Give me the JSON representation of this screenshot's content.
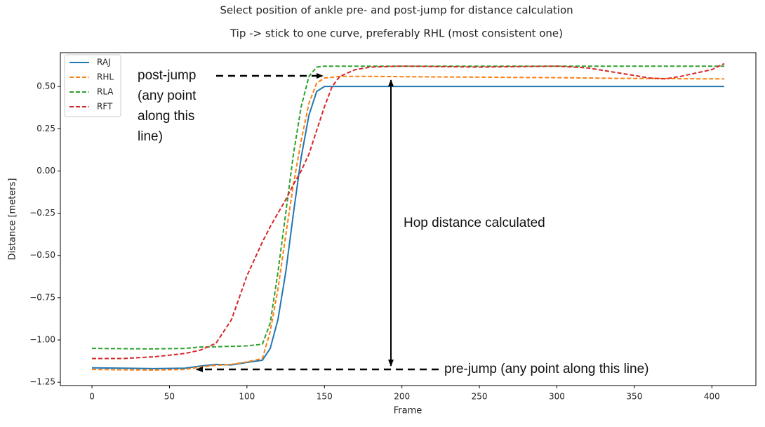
{
  "chart_data": {
    "type": "line",
    "title": "Select position of ankle pre- and post-jump for distance calculation",
    "subtitle": "Tip -> stick to one curve, preferably RHL (most consistent one)",
    "x_label": "Frame",
    "y_label": "Distance [meters]",
    "x": [
      0,
      20,
      40,
      60,
      70,
      80,
      90,
      100,
      110,
      115,
      120,
      125,
      130,
      135,
      140,
      145,
      150,
      155,
      160,
      170,
      180,
      200,
      250,
      300,
      320,
      340,
      360,
      370,
      380,
      400,
      408
    ],
    "series": [
      {
        "name": "RAJ",
        "color": "#1f77b4",
        "linestyle": "solid",
        "values": [
          -1.165,
          -1.167,
          -1.17,
          -1.167,
          -1.155,
          -1.145,
          -1.148,
          -1.133,
          -1.12,
          -1.05,
          -0.88,
          -0.6,
          -0.25,
          0.08,
          0.33,
          0.47,
          0.5,
          0.5,
          0.5,
          0.5,
          0.5,
          0.5,
          0.5,
          0.5,
          0.5,
          0.5,
          0.5,
          0.5,
          0.5,
          0.5,
          0.5
        ]
      },
      {
        "name": "RHL",
        "color": "#ff7f0e",
        "linestyle": "dashed",
        "values": [
          -1.175,
          -1.177,
          -1.178,
          -1.175,
          -1.16,
          -1.15,
          -1.145,
          -1.13,
          -1.11,
          -0.95,
          -0.7,
          -0.38,
          -0.08,
          0.18,
          0.4,
          0.52,
          0.55,
          0.555,
          0.56,
          0.56,
          0.56,
          0.558,
          0.555,
          0.552,
          0.55,
          0.548,
          0.547,
          0.547,
          0.546,
          0.545,
          0.545
        ]
      },
      {
        "name": "RLA",
        "color": "#2ca02c",
        "linestyle": "dashed",
        "values": [
          -1.05,
          -1.052,
          -1.053,
          -1.05,
          -1.042,
          -1.04,
          -1.038,
          -1.035,
          -1.025,
          -0.9,
          -0.6,
          -0.25,
          0.1,
          0.38,
          0.56,
          0.615,
          0.62,
          0.62,
          0.62,
          0.62,
          0.62,
          0.62,
          0.62,
          0.62,
          0.62,
          0.62,
          0.62,
          0.62,
          0.62,
          0.62,
          0.62
        ]
      },
      {
        "name": "RFT",
        "color": "#d62728",
        "linestyle": "dashed",
        "values": [
          -1.11,
          -1.11,
          -1.1,
          -1.08,
          -1.06,
          -1.02,
          -0.88,
          -0.62,
          -0.42,
          -0.33,
          -0.25,
          -0.17,
          -0.08,
          0.0,
          0.1,
          0.24,
          0.38,
          0.5,
          0.56,
          0.6,
          0.615,
          0.62,
          0.615,
          0.62,
          0.61,
          0.58,
          0.55,
          0.545,
          0.56,
          0.6,
          0.635
        ]
      }
    ],
    "xlim": [
      -20.4,
      428.4
    ],
    "xticks": [
      0,
      50,
      100,
      150,
      200,
      250,
      300,
      350,
      400
    ],
    "ylim": [
      -1.27,
      0.7
    ],
    "yticks": [
      {
        "value": -1.25,
        "label": "−1.25"
      },
      {
        "value": -1.0,
        "label": "−1.00"
      },
      {
        "value": -0.75,
        "label": "−0.75"
      },
      {
        "value": -0.5,
        "label": "−0.50"
      },
      {
        "value": -0.25,
        "label": "−0.25"
      },
      {
        "value": 0.0,
        "label": "0.00"
      },
      {
        "value": 0.25,
        "label": "0.25"
      },
      {
        "value": 0.5,
        "label": "0.50"
      }
    ],
    "legend": "upper left",
    "grid": false,
    "annotations": [
      [
        "post-jump",
        "(any point",
        "along this",
        "line)"
      ],
      [
        "Hop distance calculated"
      ],
      [
        "pre-jump (any point along this line)"
      ]
    ]
  }
}
